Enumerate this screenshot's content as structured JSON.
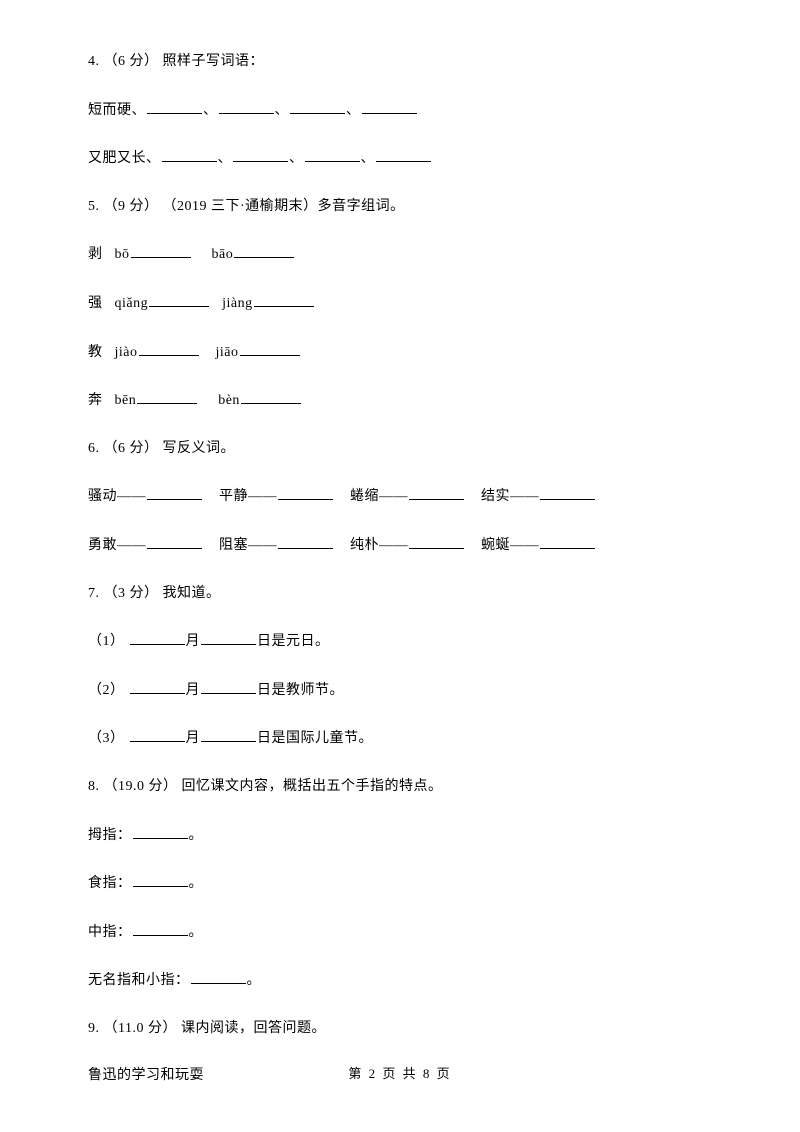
{
  "q4": {
    "header": "4. （6 分） 照样子写词语：",
    "line1_prefix": "短而硬、",
    "line2_prefix": "又肥又长、",
    "sep": "、"
  },
  "q5": {
    "header": "5. （9 分） （2019 三下·通榆期末）多音字组词。",
    "rows": [
      {
        "char": "剥",
        "p1": "bō",
        "p2": "bāo"
      },
      {
        "char": "强",
        "p1": "qiǎng",
        "p2": "jiàng"
      },
      {
        "char": "教",
        "p1": "jiào",
        "p2": "jiāo"
      },
      {
        "char": "奔",
        "p1": "bēn",
        "p2": "bèn"
      }
    ]
  },
  "q6": {
    "header": "6. （6 分） 写反义词。",
    "row1": [
      "骚动——",
      "平静——",
      "蜷缩——",
      "结实——"
    ],
    "row2": [
      "勇敢——",
      "阻塞——",
      "纯朴——",
      "蜿蜒——"
    ]
  },
  "q7": {
    "header": "7. （3 分） 我知道。",
    "items": [
      {
        "prefix": "（1）  ",
        "mid": "月",
        "suffix": "日是元日。"
      },
      {
        "prefix": "（2）  ",
        "mid": "月",
        "suffix": "日是教师节。"
      },
      {
        "prefix": "（3）  ",
        "mid": "月",
        "suffix": "日是国际儿童节。"
      }
    ]
  },
  "q8": {
    "header": "8. （19.0 分） 回忆课文内容，概括出五个手指的特点。",
    "items": [
      "拇指：",
      "食指：",
      "中指：",
      "无名指和小指："
    ],
    "punct": "。"
  },
  "q9": {
    "header": "9. （11.0 分） 课内阅读，回答问题。",
    "title": "鲁迅的学习和玩耍"
  },
  "footer": "第 2 页 共 8 页"
}
